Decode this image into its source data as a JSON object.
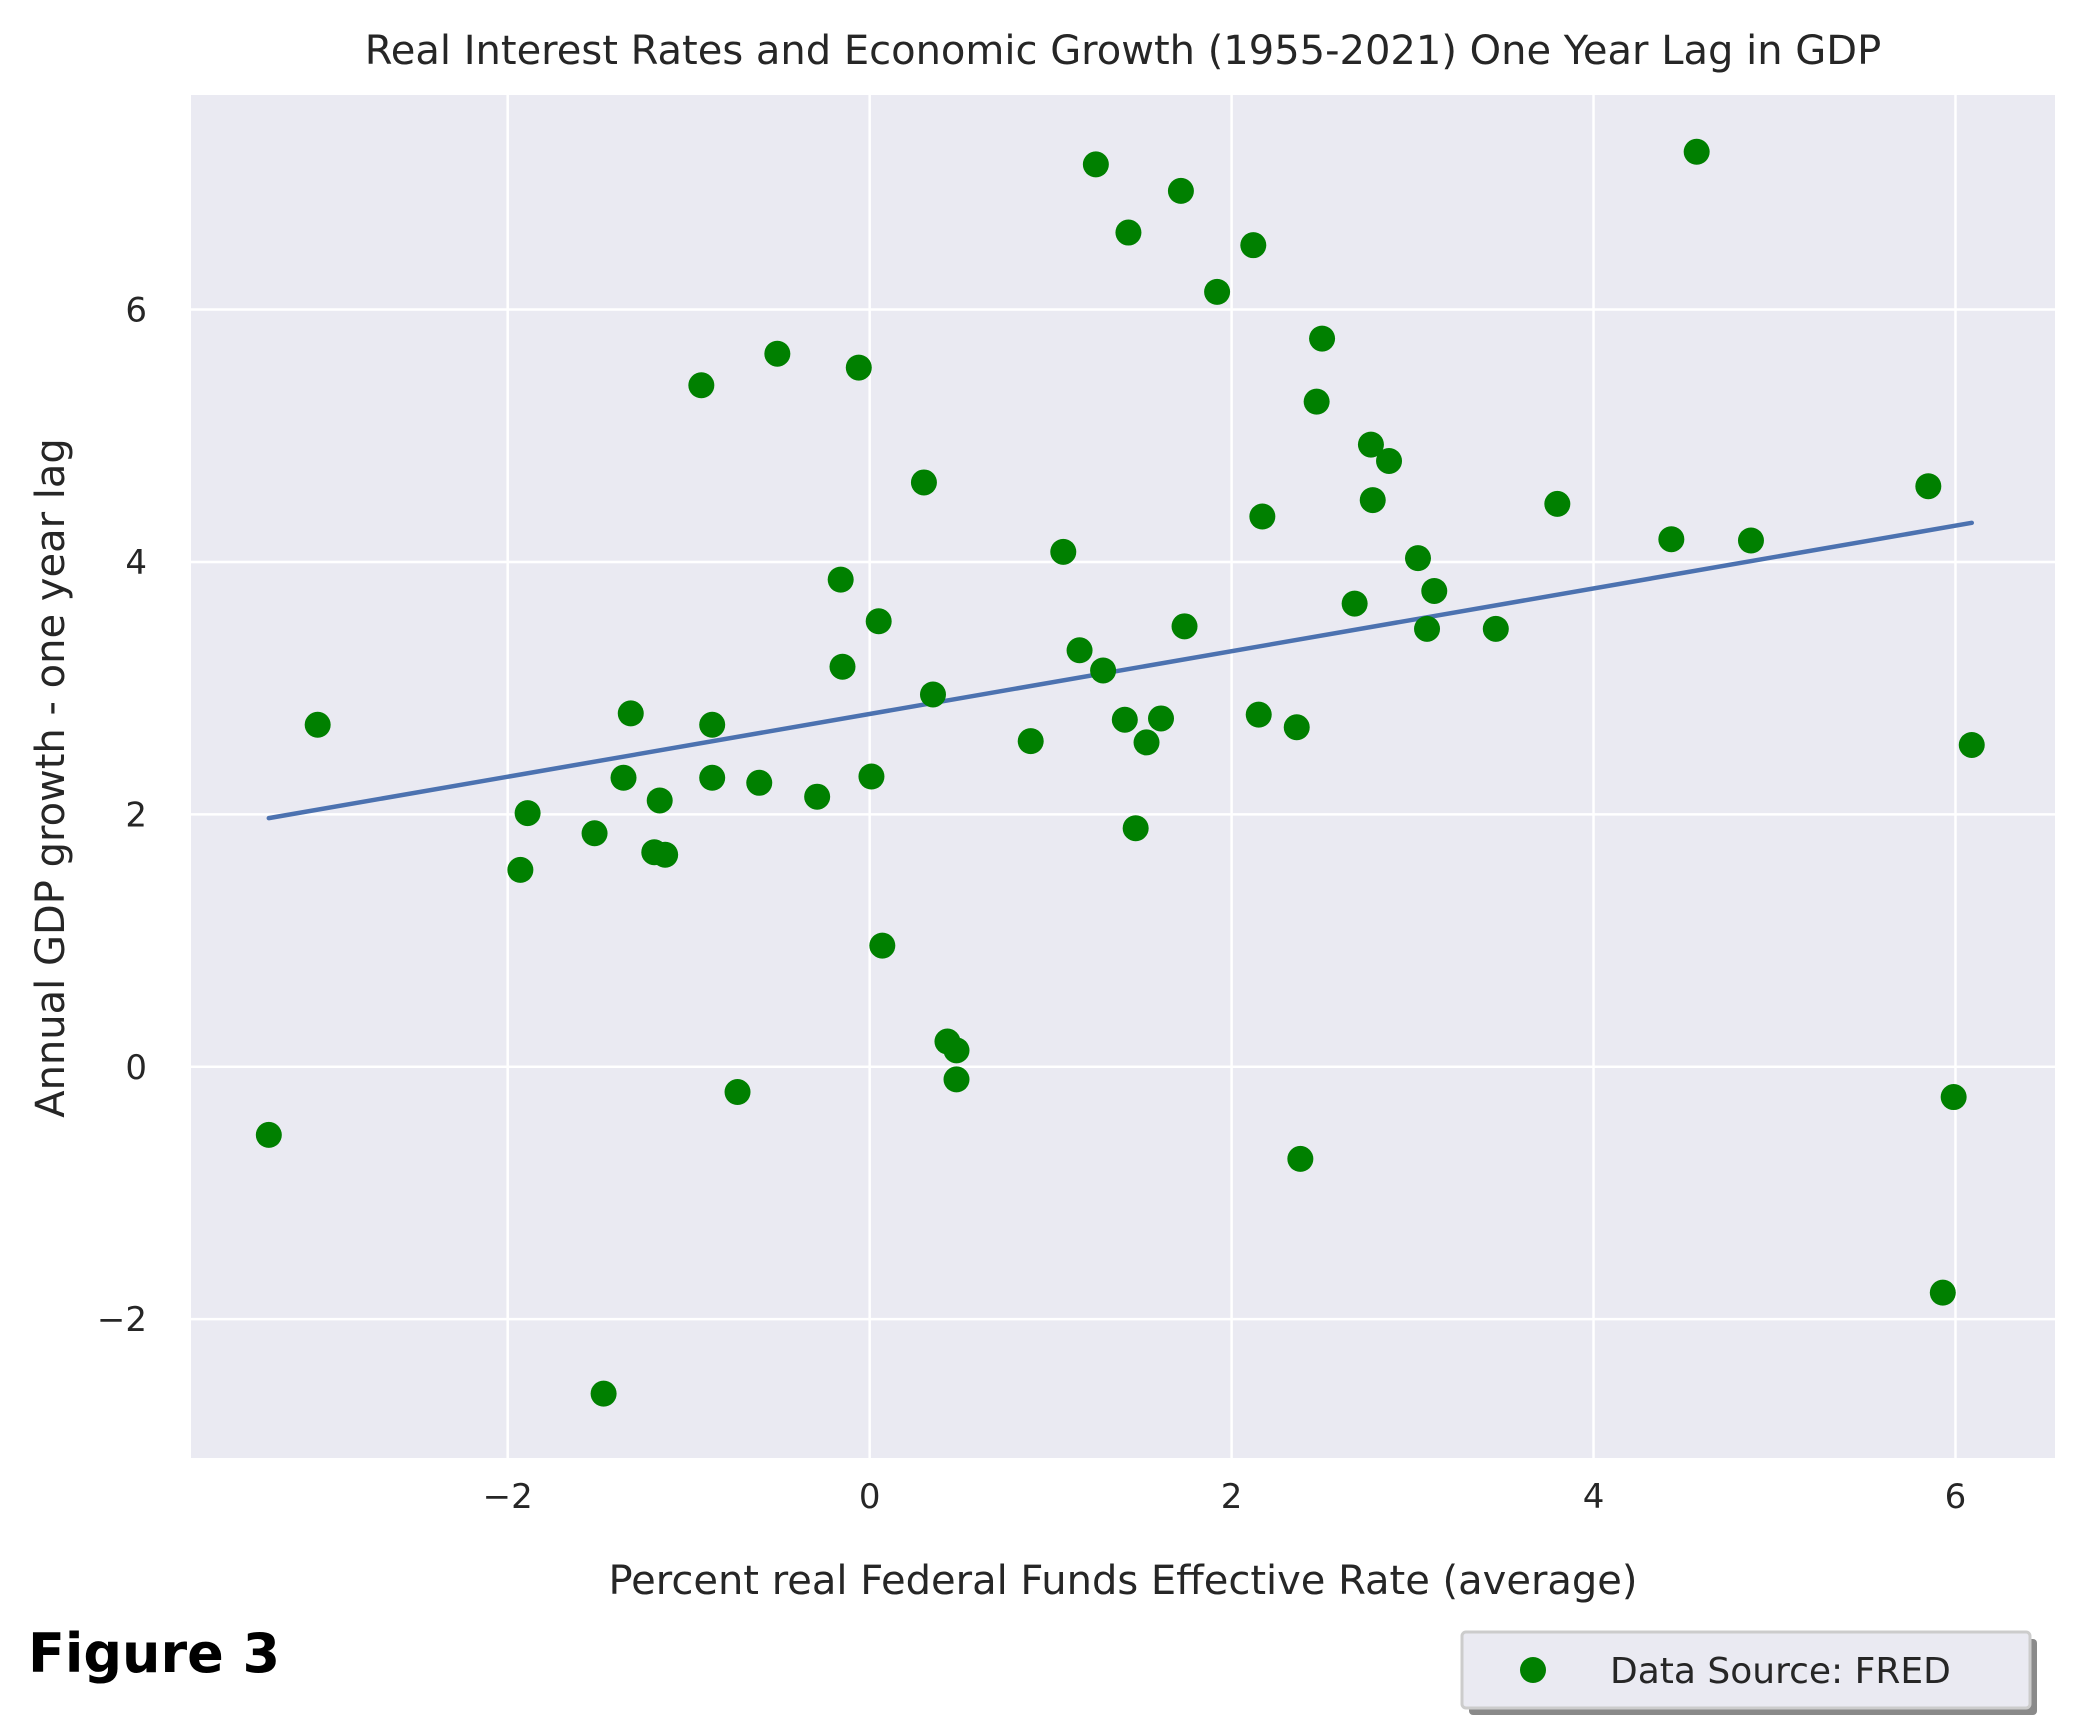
{
  "figure_label": "Figure 3",
  "colors": {
    "plot_background": "#eaeaf2",
    "grid": "#ffffff",
    "points": "#008000",
    "fit_line": "#4c72b0",
    "text": "#262626"
  },
  "chart_data": {
    "type": "scatter",
    "title": "Real Interest Rates and Economic Growth (1955-2021) One Year Lag in GDP",
    "xlabel": "Percent real Federal Funds Effective Rate (average)",
    "ylabel": "Annual GDP growth - one year lag",
    "xlim": [
      -3.75,
      6.55
    ],
    "ylim": [
      -3.1,
      7.7
    ],
    "xticks": [
      -2,
      0,
      2,
      4,
      6
    ],
    "yticks": [
      -2,
      0,
      2,
      4,
      6
    ],
    "xtick_labels": [
      "−2",
      "0",
      "2",
      "4",
      "6"
    ],
    "ytick_labels": [
      "−2",
      "0",
      "2",
      "4",
      "6"
    ],
    "grid": true,
    "legend": {
      "label": "Data Source: FRED",
      "placement": "below-right"
    },
    "series": [
      {
        "name": "Data Source: FRED",
        "kind": "scatter",
        "points": [
          [
            -3.32,
            -0.54
          ],
          [
            -3.05,
            2.71
          ],
          [
            -1.93,
            1.56
          ],
          [
            -1.89,
            2.01
          ],
          [
            -1.52,
            1.85
          ],
          [
            -1.47,
            -2.59
          ],
          [
            -1.36,
            2.29
          ],
          [
            -1.32,
            2.8
          ],
          [
            -1.19,
            1.7
          ],
          [
            -1.16,
            2.11
          ],
          [
            -1.13,
            1.68
          ],
          [
            -0.93,
            5.4
          ],
          [
            -0.87,
            2.71
          ],
          [
            -0.87,
            2.29
          ],
          [
            -0.73,
            -0.2
          ],
          [
            -0.61,
            2.25
          ],
          [
            -0.51,
            5.65
          ],
          [
            -0.29,
            2.14
          ],
          [
            -0.16,
            3.86
          ],
          [
            -0.15,
            3.17
          ],
          [
            -0.06,
            5.54
          ],
          [
            0.01,
            2.3
          ],
          [
            0.05,
            3.53
          ],
          [
            0.07,
            0.96
          ],
          [
            0.3,
            4.63
          ],
          [
            0.35,
            2.95
          ],
          [
            0.43,
            0.2
          ],
          [
            0.48,
            0.13
          ],
          [
            0.48,
            -0.1
          ],
          [
            0.89,
            2.58
          ],
          [
            1.07,
            4.08
          ],
          [
            1.16,
            3.3
          ],
          [
            1.25,
            7.15
          ],
          [
            1.29,
            3.14
          ],
          [
            1.41,
            2.75
          ],
          [
            1.43,
            6.61
          ],
          [
            1.47,
            1.89
          ],
          [
            1.53,
            2.57
          ],
          [
            1.61,
            2.76
          ],
          [
            1.72,
            6.94
          ],
          [
            1.74,
            3.49
          ],
          [
            1.92,
            6.14
          ],
          [
            2.12,
            6.51
          ],
          [
            2.15,
            2.79
          ],
          [
            2.17,
            4.36
          ],
          [
            2.36,
            2.69
          ],
          [
            2.38,
            -0.73
          ],
          [
            2.47,
            5.27
          ],
          [
            2.5,
            5.77
          ],
          [
            2.68,
            3.67
          ],
          [
            2.77,
            4.93
          ],
          [
            2.78,
            4.49
          ],
          [
            2.87,
            4.8
          ],
          [
            3.03,
            4.03
          ],
          [
            3.08,
            3.47
          ],
          [
            3.12,
            3.77
          ],
          [
            3.46,
            3.47
          ],
          [
            3.8,
            4.46
          ],
          [
            4.43,
            4.18
          ],
          [
            4.57,
            7.25
          ],
          [
            4.87,
            4.17
          ],
          [
            5.85,
            4.6
          ],
          [
            5.93,
            -1.79
          ],
          [
            5.99,
            -0.24
          ],
          [
            6.09,
            2.55
          ]
        ]
      },
      {
        "name": "trend",
        "kind": "line",
        "points": [
          [
            -3.32,
            1.97
          ],
          [
            6.09,
            4.31
          ]
        ]
      }
    ]
  }
}
